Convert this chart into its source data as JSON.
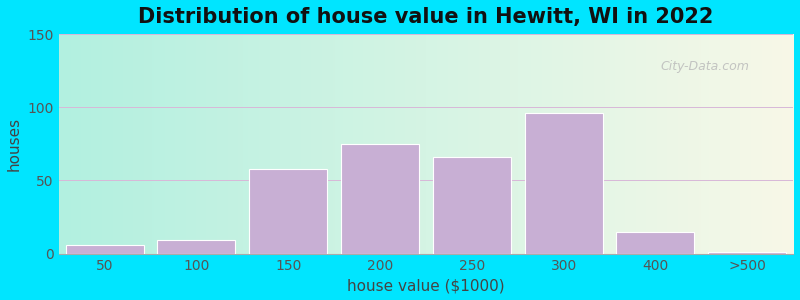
{
  "title": "Distribution of house value in Hewitt, WI in 2022",
  "xlabel": "house value ($1000)",
  "ylabel": "houses",
  "bar_labels": [
    "50",
    "100",
    "150",
    "200",
    "250",
    "300",
    "400",
    ">500"
  ],
  "bar_values": [
    6,
    9,
    58,
    75,
    66,
    96,
    15,
    1
  ],
  "bar_color": "#c8afd4",
  "bar_edge_color": "#ffffff",
  "ylim": [
    0,
    150
  ],
  "yticks": [
    0,
    50,
    100,
    150
  ],
  "outer_bg": "#00e5ff",
  "title_fontsize": 15,
  "axis_label_fontsize": 11,
  "tick_fontsize": 10,
  "watermark_text": "City-Data.com"
}
